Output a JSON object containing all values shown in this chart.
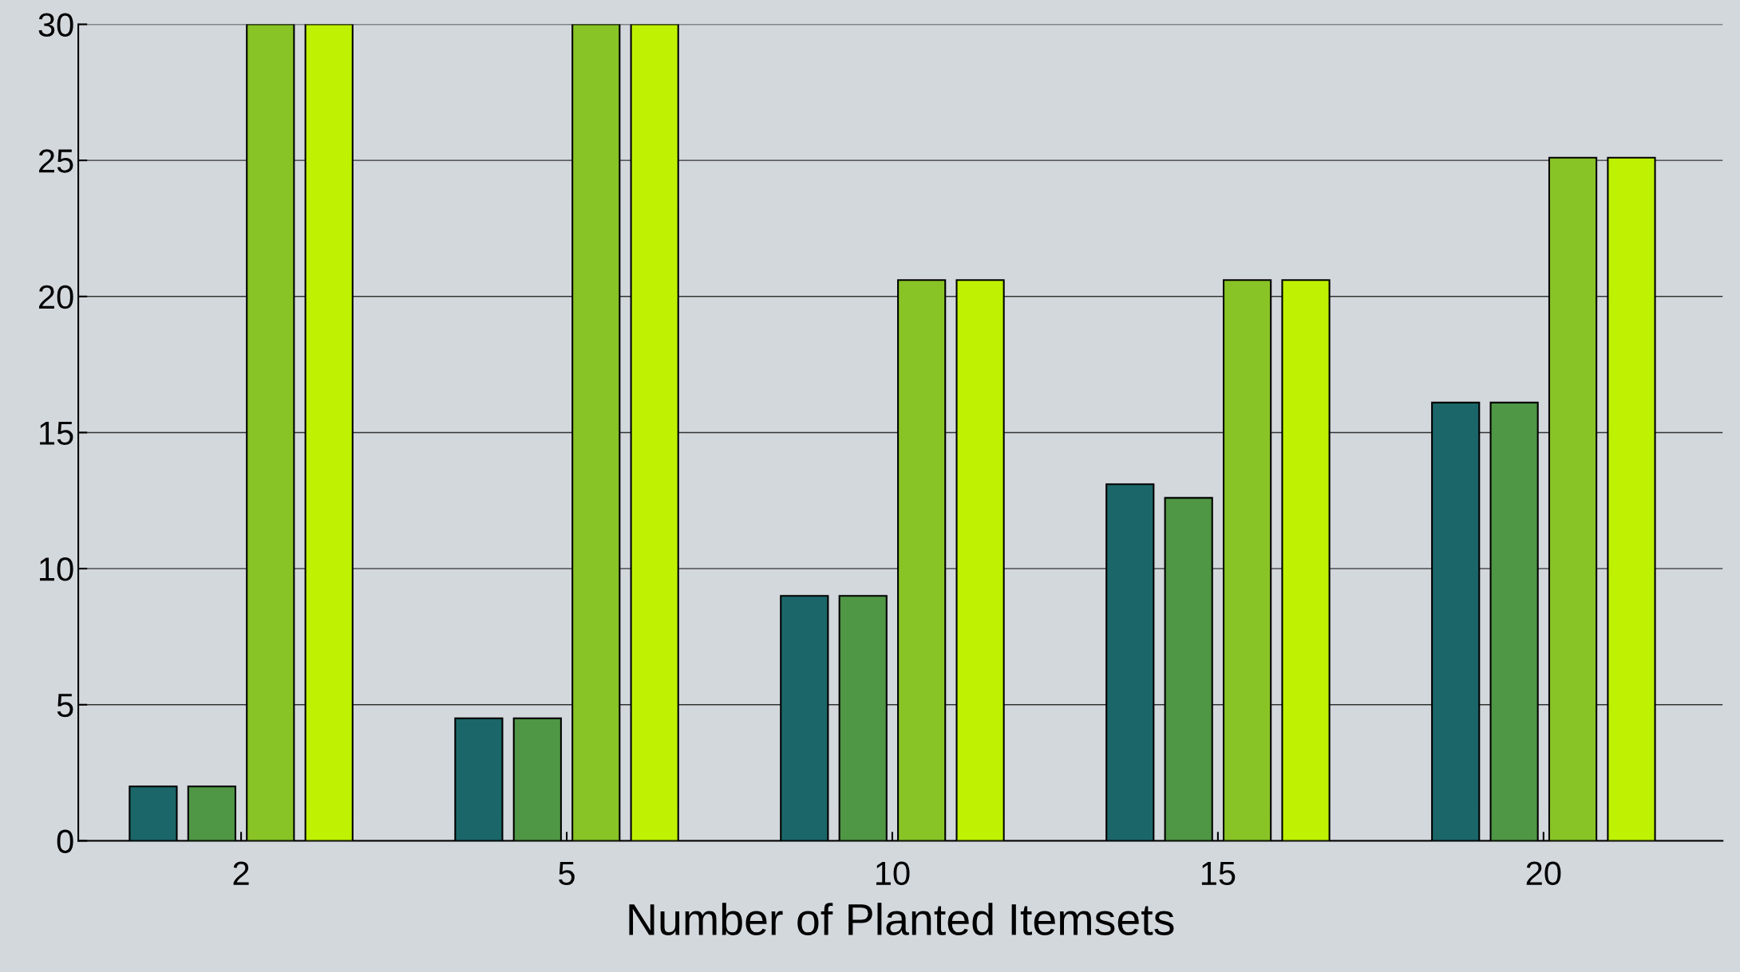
{
  "chart_data": {
    "type": "bar",
    "xlabel": "Number of Planted Itemsets",
    "categories": [
      "2",
      "5",
      "10",
      "15",
      "20"
    ],
    "series": [
      {
        "color": "#1b6668",
        "values": [
          2,
          4.5,
          9,
          13.1,
          16.1
        ]
      },
      {
        "color": "#4f9645",
        "values": [
          2,
          4.5,
          9,
          12.6,
          16.1
        ]
      },
      {
        "color": "#88c425",
        "values": [
          30,
          30,
          20.6,
          20.6,
          25.1
        ]
      },
      {
        "color": "#bef202",
        "values": [
          30,
          30,
          20.6,
          20.6,
          25.1
        ]
      }
    ],
    "ylim": [
      0,
      30
    ],
    "yticks": [
      0,
      5,
      10,
      15,
      20,
      25,
      30
    ],
    "grid": "y",
    "legend": false
  }
}
